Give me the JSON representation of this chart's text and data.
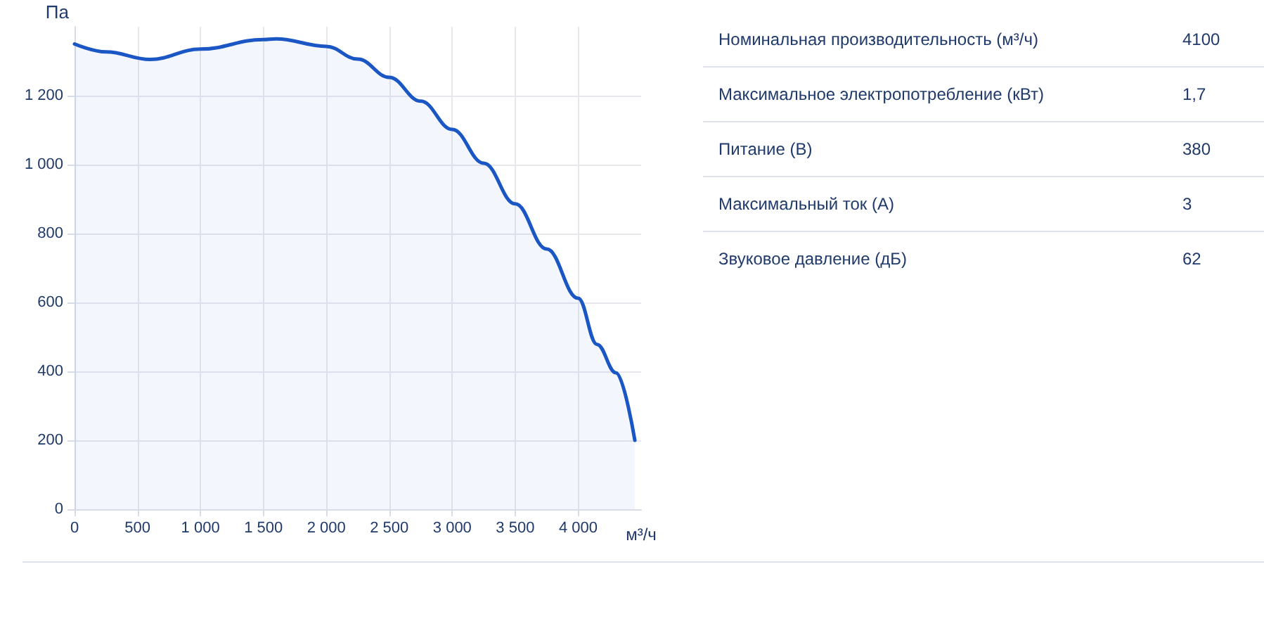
{
  "chart_data": [
    {
      "type": "area",
      "xlabel": "м³/ч",
      "ylabel": "Па",
      "x": [
        0,
        250,
        600,
        1000,
        1500,
        1600,
        2000,
        2250,
        2500,
        2750,
        3000,
        3250,
        3500,
        3750,
        4000,
        4150,
        4300,
        4450
      ],
      "series": [
        {
          "color": "#1a56c4",
          "values": [
            1350,
            1327,
            1305,
            1335,
            1363,
            1365,
            1343,
            1306,
            1253,
            1184,
            1102,
            1004,
            886,
            755,
            612,
            478,
            396,
            200
          ]
        }
      ],
      "xlim": [
        0,
        4500
      ],
      "ylim": [
        0,
        1400
      ],
      "xticks": [
        0,
        500,
        {
          "value": 1000,
          "label": "1 000"
        },
        {
          "value": 1500,
          "label": "1 500"
        },
        {
          "value": 2000,
          "label": "2 000"
        },
        {
          "value": 2500,
          "label": "2 500"
        },
        {
          "value": 3000,
          "label": "3 000"
        },
        {
          "value": 3500,
          "label": "3 500"
        },
        {
          "value": 4000,
          "label": "4 000"
        }
      ],
      "yticks": [
        0,
        200,
        400,
        600,
        800,
        {
          "value": 1000,
          "label": "1 000"
        },
        {
          "value": 1200,
          "label": "1 200"
        }
      ],
      "grid": true,
      "marker": "none",
      "line_style": "solid"
    },
    {
      "type": "other",
      "categories": [
        "Номинальная производительность (м³/ч)",
        "Максимальное электропотребление (кВт)",
        "Питание (В)",
        "Максимальный ток (А)",
        "Звуковое давление (дБ)"
      ],
      "value_labels": [
        "4100",
        "1,7",
        "380",
        "3",
        "62"
      ]
    }
  ]
}
